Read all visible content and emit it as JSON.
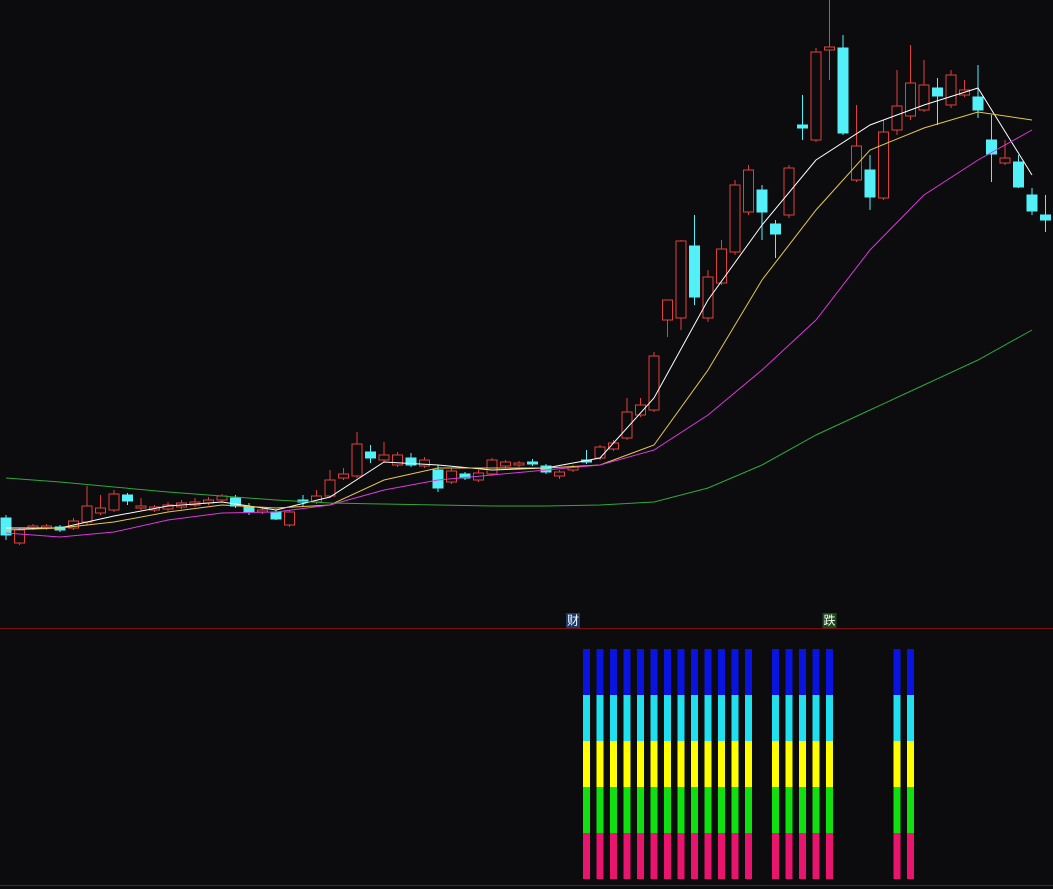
{
  "chart_data": [
    {
      "type": "candlestick",
      "categories": [
        null,
        null,
        null,
        null,
        null,
        null,
        null,
        null,
        null,
        null,
        null,
        null,
        null,
        null,
        null,
        null,
        null,
        null,
        null,
        null,
        null,
        null,
        null,
        null,
        null,
        null,
        null,
        null,
        null,
        null,
        null,
        null,
        null,
        null,
        null,
        null,
        null,
        null,
        null,
        null,
        null,
        null,
        null,
        null,
        null,
        null,
        null,
        null,
        null,
        null,
        null,
        null,
        null,
        null,
        null,
        null,
        null,
        null,
        null,
        null,
        null,
        null,
        null,
        null,
        null,
        null,
        null,
        null,
        null,
        null,
        null,
        null,
        null,
        null,
        null,
        null,
        null,
        null,
        null
      ],
      "open": [
        112,
        87,
        102,
        102,
        103,
        102,
        108,
        117,
        120,
        135,
        122,
        120,
        121,
        123,
        125,
        127,
        130,
        132,
        123,
        118,
        118,
        105,
        130,
        128,
        134,
        152,
        154,
        178,
        170,
        165,
        172,
        164,
        160,
        148,
        156,
        150,
        156,
        164,
        165,
        168,
        164,
        154,
        160,
        170,
        172,
        181,
        192,
        215,
        220,
        310,
        312,
        384,
        312,
        347,
        378,
        418,
        440,
        406,
        415,
        505,
        490,
        580,
        582,
        450,
        460,
        432,
        500,
        514,
        520,
        542,
        525,
        535,
        533,
        490,
        467,
        468,
        435,
        415,
        440
      ],
      "close": [
        95,
        100,
        104,
        104,
        100,
        109,
        124,
        122,
        136,
        129,
        124,
        123,
        125,
        127,
        128,
        130,
        134,
        124,
        118,
        120,
        111,
        118,
        128,
        134,
        150,
        156,
        186,
        172,
        175,
        175,
        165,
        170,
        142,
        159,
        152,
        157,
        170,
        168,
        167,
        166,
        158,
        158,
        163,
        168,
        183,
        187,
        218,
        225,
        274,
        330,
        389,
        333,
        353,
        381,
        445,
        460,
        418,
        396,
        462,
        502,
        578,
        583,
        497,
        484,
        433,
        498,
        524,
        547,
        545,
        534,
        555,
        540,
        520,
        476,
        472,
        443,
        419,
        410,
        450
      ],
      "high": [
        115,
        102,
        106,
        106,
        105,
        112,
        144,
        135,
        140,
        137,
        132,
        125,
        128,
        130,
        132,
        133,
        136,
        135,
        127,
        122,
        120,
        120,
        135,
        140,
        160,
        162,
        198,
        185,
        188,
        178,
        177,
        173,
        165,
        162,
        158,
        160,
        172,
        170,
        169,
        171,
        166,
        160,
        165,
        180,
        185,
        190,
        232,
        232,
        278,
        330,
        390,
        415,
        360,
        390,
        450,
        465,
        445,
        410,
        465,
        535,
        582,
        630,
        595,
        525,
        475,
        510,
        560,
        585,
        570,
        552,
        560,
        550,
        565,
        515,
        490,
        475,
        442,
        435,
        455
      ],
      "low": [
        90,
        85,
        100,
        100,
        98,
        100,
        105,
        115,
        118,
        125,
        120,
        118,
        119,
        121,
        123,
        125,
        128,
        122,
        115,
        116,
        110,
        103,
        124,
        126,
        132,
        150,
        152,
        167,
        168,
        163,
        163,
        162,
        138,
        146,
        150,
        148,
        154,
        162,
        163,
        164,
        156,
        151,
        158,
        166,
        170,
        179,
        190,
        213,
        218,
        293,
        300,
        325,
        308,
        345,
        375,
        415,
        390,
        372,
        412,
        490,
        488,
        550,
        495,
        448,
        420,
        430,
        495,
        510,
        518,
        505,
        522,
        533,
        512,
        448,
        465,
        442,
        415,
        398,
        430
      ],
      "up_color": "#e0403a",
      "down_color": "#54f0f8",
      "ylim": [
        0,
        630
      ],
      "ma": [
        {
          "color": "#ffffff",
          "values": [
            102,
            102,
            114,
            124,
            128,
            120,
            133,
            168,
            165,
            160,
            162,
            172,
            232,
            330,
            405,
            470,
            505,
            525,
            542,
            455
          ]
        },
        {
          "color": "#e6c84a",
          "values": [
            100,
            102,
            108,
            118,
            125,
            122,
            125,
            150,
            162,
            162,
            162,
            165,
            185,
            260,
            350,
            420,
            480,
            502,
            518,
            510
          ]
        },
        {
          "color": "#d83ad8",
          "values": [
            97,
            93,
            98,
            110,
            117,
            118,
            125,
            140,
            150,
            155,
            160,
            165,
            180,
            215,
            260,
            310,
            380,
            435,
            470,
            500
          ]
        },
        {
          "color": "#2fa83a",
          "values": [
            152,
            148,
            143,
            138,
            134,
            130,
            127,
            126,
            125,
            124,
            124,
            125,
            128,
            142,
            165,
            195,
            220,
            245,
            270,
            300
          ]
        }
      ],
      "annotations": [
        {
          "text": "财",
          "index": 42
        },
        {
          "text": "跌",
          "index": 61
        }
      ]
    },
    {
      "type": "stacked_bar",
      "indices": [
        43,
        44,
        45,
        46,
        47,
        48,
        49,
        50,
        51,
        52,
        53,
        54,
        55,
        57,
        58,
        59,
        60,
        61,
        66,
        67
      ],
      "ylim": [
        0,
        5
      ],
      "series": [
        {
          "color": "#e8146e",
          "values": [
            1,
            1,
            1,
            1,
            1,
            1,
            1,
            1,
            1,
            1,
            1,
            1,
            1,
            1,
            1,
            1,
            1,
            1,
            1,
            1
          ]
        },
        {
          "color": "#10e010",
          "values": [
            1,
            1,
            1,
            1,
            1,
            1,
            1,
            1,
            1,
            1,
            1,
            1,
            1,
            1,
            1,
            1,
            1,
            1,
            1,
            1
          ]
        },
        {
          "color": "#ffff00",
          "values": [
            1,
            1,
            1,
            1,
            1,
            1,
            1,
            1,
            1,
            1,
            1,
            1,
            1,
            1,
            1,
            1,
            1,
            1,
            1,
            1
          ]
        },
        {
          "color": "#20e0f0",
          "values": [
            1,
            1,
            1,
            1,
            1,
            1,
            1,
            1,
            1,
            1,
            1,
            1,
            1,
            1,
            1,
            1,
            1,
            1,
            1,
            1
          ]
        },
        {
          "color": "#0a14e0",
          "values": [
            1,
            1,
            1,
            1,
            1,
            1,
            1,
            1,
            1,
            1,
            1,
            1,
            1,
            1,
            1,
            1,
            1,
            1,
            1,
            1
          ]
        }
      ]
    }
  ]
}
